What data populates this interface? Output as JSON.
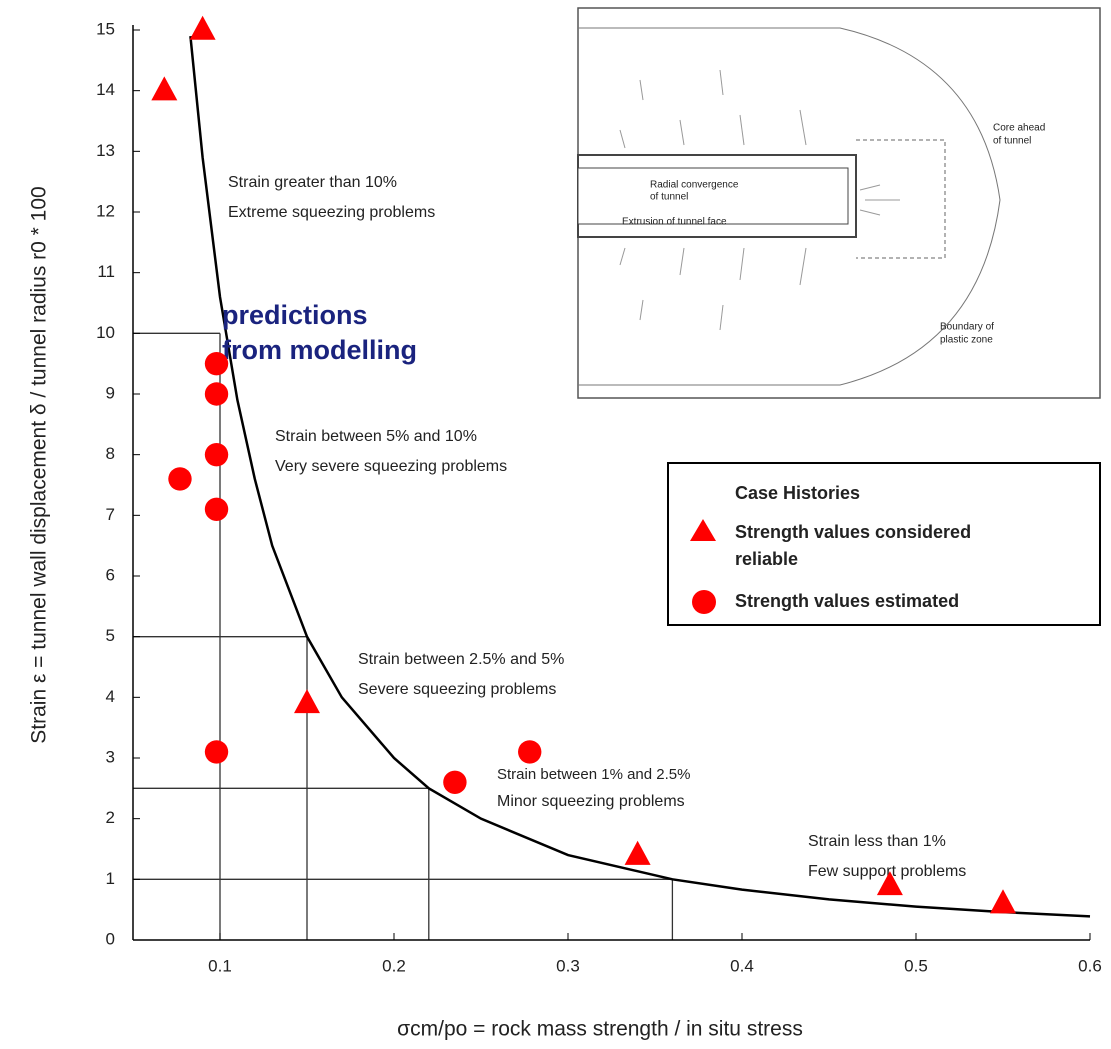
{
  "chart_data": {
    "type": "scatter",
    "xlabel": "σcm/po = rock mass strength / in situ stress",
    "ylabel": "Strain ε = tunnel wall displacement δ / tunnel radius r0 * 100",
    "xlim": [
      0.05,
      0.6
    ],
    "ylim": [
      0,
      15
    ],
    "xticks": [
      0.1,
      0.2,
      0.3,
      0.4,
      0.5,
      0.6
    ],
    "yticks": [
      0,
      1,
      2,
      3,
      4,
      5,
      6,
      7,
      8,
      9,
      10,
      11,
      12,
      13,
      14,
      15
    ],
    "legend_title": "Case Histories",
    "legend_position": "right",
    "series": [
      {
        "name": "Strength values considered reliable",
        "marker": "triangle",
        "color": "#ff0000",
        "x": [
          0.068,
          0.09,
          0.15,
          0.34,
          0.485,
          0.55
        ],
        "values": [
          14.0,
          15.0,
          3.9,
          1.4,
          0.9,
          0.6
        ]
      },
      {
        "name": "Strength values estimated",
        "marker": "circle",
        "color": "#ff0000",
        "x": [
          0.098,
          0.098,
          0.077,
          0.098,
          0.098,
          0.098,
          0.235,
          0.278
        ],
        "values": [
          9.5,
          9.0,
          7.6,
          8.0,
          7.1,
          3.1,
          2.6,
          3.1
        ]
      }
    ],
    "curve": {
      "color": "#000000",
      "x": [
        0.083,
        0.09,
        0.1,
        0.11,
        0.12,
        0.13,
        0.15,
        0.17,
        0.2,
        0.22,
        0.25,
        0.3,
        0.36,
        0.4,
        0.45,
        0.5,
        0.55,
        0.6
      ],
      "values": [
        14.9,
        12.9,
        10.6,
        8.9,
        7.6,
        6.5,
        5.0,
        4.0,
        3.0,
        2.5,
        2.0,
        1.4,
        1.0,
        0.83,
        0.67,
        0.55,
        0.46,
        0.39
      ]
    },
    "guides": [
      {
        "x": 0.1,
        "y": 10
      },
      {
        "x": 0.15,
        "y": 5
      },
      {
        "x": 0.22,
        "y": 2.5
      },
      {
        "x": 0.36,
        "y": 1
      }
    ],
    "annotations": [
      "Strain greater than 10%",
      "Extreme squeezing problems",
      "Strain between 5% and 10%",
      "Very severe squeezing problems",
      "Strain between 2.5% and 5%",
      "Severe squeezing problems",
      "Strain between 1% and 2.5%",
      "Minor squeezing problems",
      "Strain less than 1%",
      "Few support problems",
      "predictions",
      "from modelling"
    ],
    "inset_labels": [
      "Core ahead",
      "of tunnel",
      "Radial convergence",
      "of tunnel",
      "Extrusion of tunnel face",
      "Boundary of",
      "plastic zone"
    ]
  }
}
